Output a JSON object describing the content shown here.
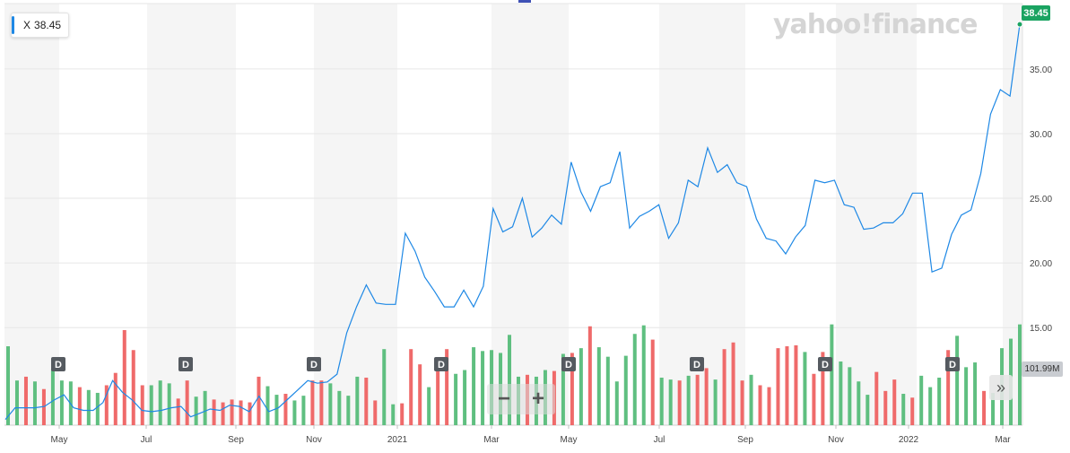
{
  "ticker": {
    "symbol": "X",
    "price": "38.45"
  },
  "logo": "yahoo!finance",
  "last_price_label": "38.45",
  "volume_label": "101.99M",
  "zoom": {
    "minus": "−",
    "plus": "+"
  },
  "expand_label": "»",
  "dividend_marker": "D",
  "colors": {
    "line": "#1e88e5",
    "up": "#5fbf80",
    "down": "#ef6a6a",
    "badge": "#1aa361",
    "band": "#f5f5f5"
  },
  "chart_data": {
    "type": "line",
    "title": "",
    "y_ticks": [
      "15.00",
      "20.00",
      "25.00",
      "30.00",
      "35.00"
    ],
    "x_ticks": [
      "May",
      "Jul",
      "Sep",
      "Nov",
      "2021",
      "Mar",
      "May",
      "Jul",
      "Sep",
      "Nov",
      "2022",
      "Mar"
    ],
    "ylim": [
      7.8,
      39.5
    ],
    "grid": true,
    "price_series": [
      7.9,
      8.8,
      8.8,
      8.8,
      8.9,
      9.4,
      9.8,
      8.8,
      8.6,
      8.6,
      9.2,
      10.9,
      10.0,
      9.4,
      8.6,
      8.5,
      8.6,
      8.8,
      8.9,
      8.1,
      8.4,
      8.7,
      8.6,
      9.0,
      8.9,
      8.5,
      9.7,
      8.5,
      8.8,
      9.5,
      10.2,
      10.9,
      10.7,
      10.8,
      11.4,
      14.6,
      16.6,
      18.3,
      16.9,
      16.8,
      16.8,
      22.3,
      20.9,
      18.9,
      17.8,
      16.6,
      16.6,
      17.9,
      16.6,
      18.2,
      24.2,
      22.4,
      22.8,
      25.0,
      22.0,
      22.7,
      23.7,
      23.0,
      27.8,
      25.5,
      24.0,
      25.9,
      26.2,
      28.6,
      22.7,
      23.6,
      24.0,
      24.5,
      21.9,
      23.1,
      26.4,
      25.9,
      28.9,
      27.0,
      27.6,
      26.2,
      25.9,
      23.4,
      21.9,
      21.7,
      20.7,
      22.0,
      22.9,
      26.4,
      26.2,
      26.4,
      24.5,
      24.3,
      22.6,
      22.7,
      23.1,
      23.1,
      23.8,
      25.4,
      25.4,
      19.3,
      19.6,
      22.2,
      23.7,
      24.1,
      26.9,
      31.5,
      33.4,
      32.9,
      38.45
    ],
    "volume_series": {
      "unit": "relative",
      "values": [
        0.83,
        0.47,
        0.51,
        0.46,
        0.38,
        0.59,
        0.47,
        0.46,
        0.4,
        0.37,
        0.34,
        0.42,
        0.55,
        1.0,
        0.79,
        0.42,
        0.42,
        0.47,
        0.44,
        0.28,
        0.47,
        0.3,
        0.36,
        0.27,
        0.24,
        0.27,
        0.26,
        0.24,
        0.51,
        0.41,
        0.32,
        0.33,
        0.26,
        0.31,
        0.47,
        0.47,
        0.44,
        0.36,
        0.31,
        0.51,
        0.5,
        0.26,
        0.8,
        0.22,
        0.23,
        0.8,
        0.64,
        0.4,
        0.65,
        0.8,
        0.54,
        0.58,
        0.82,
        0.78,
        0.79,
        0.76,
        0.95,
        0.51,
        0.53,
        0.51,
        0.58,
        0.57,
        0.75,
        0.76,
        0.81,
        1.04,
        0.82,
        0.72,
        0.46,
        0.73,
        0.96,
        1.05,
        0.9,
        0.5,
        0.48,
        0.47,
        0.52,
        0.53,
        0.6,
        0.48,
        0.8,
        0.87,
        0.47,
        0.53,
        0.42,
        0.4,
        0.81,
        0.83,
        0.84,
        0.77,
        0.54,
        0.77,
        1.06,
        0.67,
        0.61,
        0.46,
        0.32,
        0.56,
        0.36,
        0.48,
        0.33,
        0.29,
        0.52,
        0.4,
        0.5,
        0.79,
        0.94,
        0.61,
        0.66,
        0.36,
        0.34,
        0.81,
        0.91,
        1.06
      ],
      "up": [
        1,
        1,
        0,
        1,
        0,
        1,
        1,
        1,
        0,
        1,
        1,
        0,
        0,
        0,
        0,
        0,
        1,
        1,
        1,
        0,
        0,
        1,
        1,
        0,
        0,
        0,
        0,
        0,
        0,
        1,
        1,
        0,
        1,
        1,
        0,
        0,
        1,
        1,
        1,
        1,
        0,
        0,
        1,
        1,
        0,
        0,
        0,
        1,
        0,
        0,
        1,
        1,
        1,
        1,
        1,
        1,
        1,
        1,
        0,
        1,
        1,
        0,
        1,
        0,
        1,
        0,
        1,
        1,
        1,
        1,
        1,
        1,
        0,
        1,
        1,
        0,
        1,
        0,
        0,
        1,
        0,
        0,
        0,
        1,
        0,
        0,
        0,
        0,
        0,
        1,
        0,
        0,
        1,
        1,
        1,
        1,
        1,
        0,
        0,
        0,
        1,
        0,
        1,
        1,
        1,
        0,
        1,
        1,
        1,
        0,
        1,
        1,
        1,
        1
      ]
    },
    "dividend_months": [
      "May",
      "Aug",
      "Oct-Nov",
      "Feb 2021",
      "May 2021",
      "Aug 2021",
      "Nov 2021",
      "Feb 2022"
    ]
  }
}
